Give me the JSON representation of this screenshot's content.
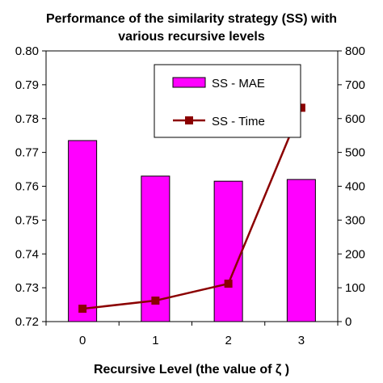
{
  "chart_data": {
    "type": "bar+line",
    "title_line1": "Performance of the similarity strategy (SS) with",
    "title_line2": "various recursive levels",
    "xlabel": "Recursive Level (the value of ζ )",
    "categories": [
      "0",
      "1",
      "2",
      "3"
    ],
    "y_left": {
      "range": [
        0.72,
        0.8
      ],
      "ticks": [
        "0.80",
        "0.79",
        "0.78",
        "0.77",
        "0.76",
        "0.75",
        "0.74",
        "0.73",
        "0.72"
      ]
    },
    "y_right": {
      "range": [
        0,
        800
      ],
      "ticks": [
        "800",
        "700",
        "600",
        "500",
        "400",
        "300",
        "200",
        "100",
        "0"
      ]
    },
    "series": [
      {
        "name": "SS - MAE",
        "type": "bar",
        "axis": "left",
        "color": "#ff00ff",
        "values": [
          0.7735,
          0.763,
          0.7615,
          0.762
        ]
      },
      {
        "name": "SS - Time",
        "type": "line",
        "axis": "right",
        "color": "#8b0000",
        "values": [
          38,
          62,
          112,
          632
        ]
      }
    ],
    "legend": {
      "placement": "top-right"
    },
    "grid": false
  }
}
